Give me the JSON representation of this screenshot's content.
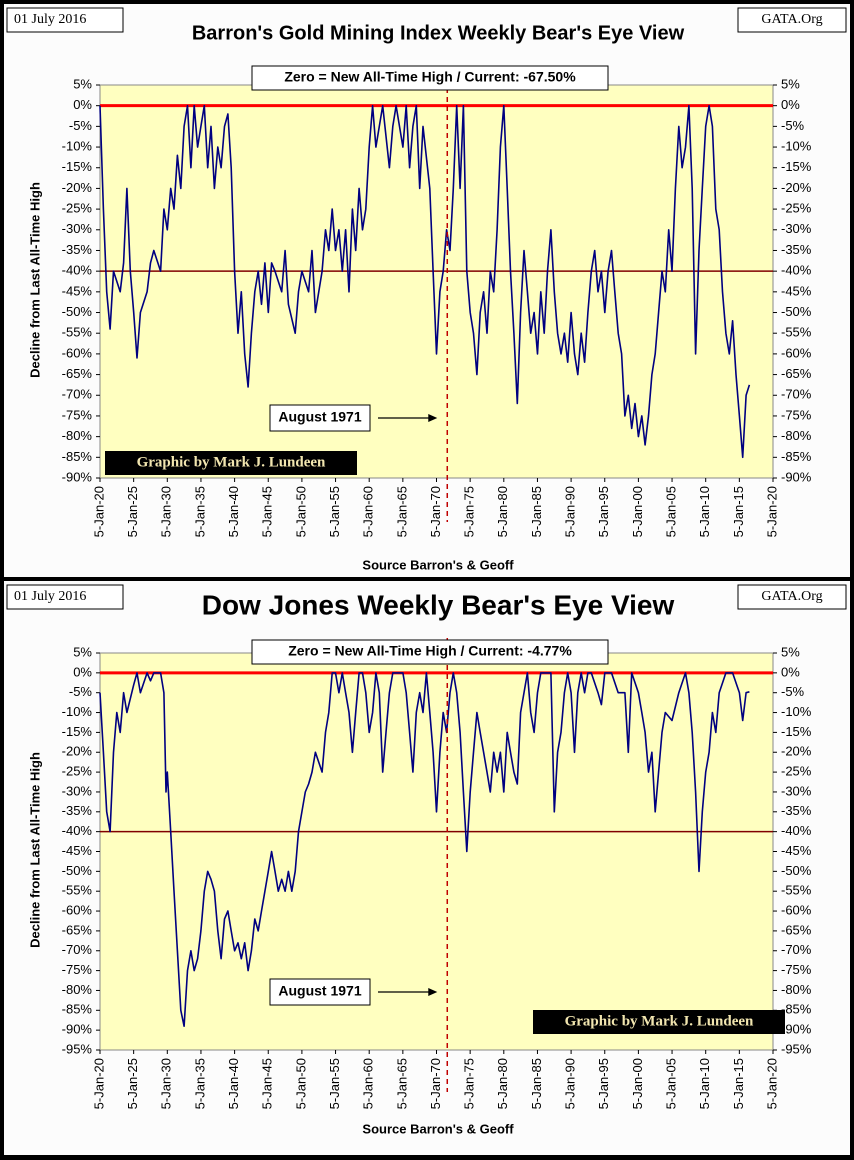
{
  "chart_data": [
    {
      "type": "line",
      "title": "Barron's Gold Mining Index Weekly Bear's Eye View",
      "date": "01 July 2016",
      "site": "GATA.Org",
      "note": "Zero = New All-Time High / Current: -67.50%",
      "event_label": "August 1971",
      "event_x": 1971.6,
      "credit": "Graphic by Mark J. Lundeen",
      "xlabel": "Source Barron's & Geoff",
      "ylabel": "Decline from Last All-Time High",
      "color": "#000080",
      "hlines": [
        {
          "value": 0,
          "color": "#ff0000"
        },
        {
          "value": -40,
          "color": "#800000"
        }
      ],
      "xlim": [
        1920,
        2020
      ],
      "ylim": [
        -90,
        5
      ],
      "xticks": [
        {
          "value": 1920,
          "label": "5-Jan-20"
        },
        {
          "value": 1925,
          "label": "5-Jan-25"
        },
        {
          "value": 1930,
          "label": "5-Jan-30"
        },
        {
          "value": 1935,
          "label": "5-Jan-35"
        },
        {
          "value": 1940,
          "label": "5-Jan-40"
        },
        {
          "value": 1945,
          "label": "5-Jan-45"
        },
        {
          "value": 1950,
          "label": "5-Jan-50"
        },
        {
          "value": 1955,
          "label": "5-Jan-55"
        },
        {
          "value": 1960,
          "label": "5-Jan-60"
        },
        {
          "value": 1965,
          "label": "5-Jan-65"
        },
        {
          "value": 1970,
          "label": "5-Jan-70"
        },
        {
          "value": 1975,
          "label": "5-Jan-75"
        },
        {
          "value": 1980,
          "label": "5-Jan-80"
        },
        {
          "value": 1985,
          "label": "5-Jan-85"
        },
        {
          "value": 1990,
          "label": "5-Jan-90"
        },
        {
          "value": 1995,
          "label": "5-Jan-95"
        },
        {
          "value": 2000,
          "label": "5-Jan-00"
        },
        {
          "value": 2005,
          "label": "5-Jan-05"
        },
        {
          "value": 2010,
          "label": "5-Jan-10"
        },
        {
          "value": 2015,
          "label": "5-Jan-15"
        },
        {
          "value": 2020,
          "label": "5-Jan-20"
        }
      ],
      "yticks": [
        {
          "value": 5,
          "label": "5%"
        },
        {
          "value": 0,
          "label": "0%"
        },
        {
          "value": -5,
          "label": "-5%"
        },
        {
          "value": -10,
          "label": "-10%"
        },
        {
          "value": -15,
          "label": "-15%"
        },
        {
          "value": -20,
          "label": "-20%"
        },
        {
          "value": -25,
          "label": "-25%"
        },
        {
          "value": -30,
          "label": "-30%"
        },
        {
          "value": -35,
          "label": "-35%"
        },
        {
          "value": -40,
          "label": "-40%"
        },
        {
          "value": -45,
          "label": "-45%"
        },
        {
          "value": -50,
          "label": "-50%"
        },
        {
          "value": -55,
          "label": "-55%"
        },
        {
          "value": -60,
          "label": "-60%"
        },
        {
          "value": -65,
          "label": "-65%"
        },
        {
          "value": -70,
          "label": "-70%"
        },
        {
          "value": -75,
          "label": "-75%"
        },
        {
          "value": -80,
          "label": "-80%"
        },
        {
          "value": -85,
          "label": "-85%"
        },
        {
          "value": -90,
          "label": "-90%"
        }
      ],
      "x": [
        1920,
        1920.5,
        1921,
        1921.5,
        1922,
        1923,
        1923.5,
        1924,
        1924.5,
        1925,
        1925.5,
        1926,
        1927,
        1927.5,
        1928,
        1929,
        1929.5,
        1930,
        1930.5,
        1931,
        1931.5,
        1932,
        1932.5,
        1933,
        1933.5,
        1934,
        1934.5,
        1935,
        1935.5,
        1936,
        1936.5,
        1937,
        1937.5,
        1938,
        1938.5,
        1939,
        1939.5,
        1940,
        1940.5,
        1941,
        1941.5,
        1942,
        1942.5,
        1943,
        1943.5,
        1944,
        1944.5,
        1945,
        1945.5,
        1946,
        1947,
        1947.5,
        1948,
        1949,
        1949.5,
        1950,
        1951,
        1951.5,
        1952,
        1953,
        1953.5,
        1954,
        1954.5,
        1955,
        1955.5,
        1956,
        1956.5,
        1957,
        1957.5,
        1958,
        1958.5,
        1959,
        1959.5,
        1960,
        1960.5,
        1961,
        1961.5,
        1962,
        1963,
        1963.5,
        1964,
        1965,
        1965.5,
        1966,
        1966.5,
        1967,
        1967.5,
        1968,
        1969,
        1969.5,
        1970,
        1970.5,
        1971,
        1971.5,
        1972,
        1972.5,
        1973,
        1973.5,
        1974,
        1974.5,
        1975,
        1975.5,
        1976,
        1976.5,
        1977,
        1977.5,
        1978,
        1978.5,
        1979,
        1979.5,
        1980,
        1980.5,
        1981,
        1981.5,
        1982,
        1982.5,
        1983,
        1983.5,
        1984,
        1984.5,
        1985,
        1985.5,
        1986,
        1986.5,
        1987,
        1987.5,
        1988,
        1988.5,
        1989,
        1989.5,
        1990,
        1990.5,
        1991,
        1991.5,
        1992,
        1992.5,
        1993,
        1993.5,
        1994,
        1994.5,
        1995,
        1995.5,
        1996,
        1996.5,
        1997,
        1997.5,
        1998,
        1998.5,
        1999,
        1999.5,
        2000,
        2000.5,
        2001,
        2001.5,
        2002,
        2002.5,
        2003,
        2003.5,
        2004,
        2004.5,
        2005,
        2005.5,
        2006,
        2006.5,
        2007,
        2007.5,
        2008,
        2008.5,
        2009,
        2009.5,
        2010,
        2010.5,
        2011,
        2011.5,
        2012,
        2012.5,
        2013,
        2013.5,
        2014,
        2014.5,
        2015,
        2015.5,
        2016,
        2016.5
      ],
      "values": [
        0,
        -25,
        -45,
        -54,
        -40,
        -45,
        -38,
        -20,
        -40,
        -50,
        -61,
        -50,
        -45,
        -38,
        -35,
        -40,
        -25,
        -30,
        -20,
        -25,
        -12,
        -20,
        -5,
        0,
        -15,
        0,
        -10,
        -5,
        0,
        -15,
        -5,
        -20,
        -10,
        -15,
        -5,
        -2,
        -15,
        -40,
        -55,
        -45,
        -60,
        -68,
        -55,
        -45,
        -40,
        -48,
        -38,
        -50,
        -38,
        -40,
        -45,
        -35,
        -48,
        -55,
        -45,
        -40,
        -45,
        -35,
        -50,
        -40,
        -30,
        -35,
        -25,
        -35,
        -30,
        -40,
        -30,
        -45,
        -25,
        -35,
        -20,
        -30,
        -25,
        -10,
        0,
        -10,
        -5,
        0,
        -15,
        -5,
        0,
        -10,
        0,
        -15,
        -5,
        0,
        -20,
        -5,
        -20,
        -40,
        -60,
        -45,
        -40,
        -30,
        -35,
        -20,
        0,
        -20,
        0,
        -40,
        -50,
        -55,
        -65,
        -50,
        -45,
        -55,
        -40,
        -45,
        -30,
        -10,
        0,
        -20,
        -40,
        -55,
        -72,
        -50,
        -35,
        -45,
        -55,
        -50,
        -60,
        -45,
        -55,
        -40,
        -30,
        -45,
        -55,
        -60,
        -55,
        -62,
        -50,
        -60,
        -65,
        -55,
        -62,
        -50,
        -40,
        -35,
        -45,
        -40,
        -50,
        -40,
        -35,
        -45,
        -55,
        -60,
        -75,
        -70,
        -78,
        -72,
        -80,
        -75,
        -82,
        -75,
        -65,
        -60,
        -50,
        -40,
        -45,
        -30,
        -40,
        -20,
        -5,
        -15,
        -10,
        0,
        -20,
        -60,
        -35,
        -20,
        -5,
        0,
        -5,
        -25,
        -30,
        -45,
        -55,
        -60,
        -52,
        -65,
        -75,
        -85,
        -70,
        -67.5
      ]
    },
    {
      "type": "line",
      "title": "Dow Jones Weekly Bear's Eye View",
      "date": "01 July 2016",
      "site": "GATA.Org",
      "note": "Zero = New All-Time High / Current: -4.77%",
      "event_label": "August 1971",
      "event_x": 1971.6,
      "credit": "Graphic by Mark J. Lundeen",
      "xlabel": "Source Barron's & Geoff",
      "ylabel": "Decline from Last All-Time High",
      "color": "#000080",
      "hlines": [
        {
          "value": 0,
          "color": "#ff0000"
        },
        {
          "value": -40,
          "color": "#800000"
        }
      ],
      "xlim": [
        1920,
        2020
      ],
      "ylim": [
        -95,
        5
      ],
      "xticks": [
        {
          "value": 1920,
          "label": "5-Jan-20"
        },
        {
          "value": 1925,
          "label": "5-Jan-25"
        },
        {
          "value": 1930,
          "label": "5-Jan-30"
        },
        {
          "value": 1935,
          "label": "5-Jan-35"
        },
        {
          "value": 1940,
          "label": "5-Jan-40"
        },
        {
          "value": 1945,
          "label": "5-Jan-45"
        },
        {
          "value": 1950,
          "label": "5-Jan-50"
        },
        {
          "value": 1955,
          "label": "5-Jan-55"
        },
        {
          "value": 1960,
          "label": "5-Jan-60"
        },
        {
          "value": 1965,
          "label": "5-Jan-65"
        },
        {
          "value": 1970,
          "label": "5-Jan-70"
        },
        {
          "value": 1975,
          "label": "5-Jan-75"
        },
        {
          "value": 1980,
          "label": "5-Jan-80"
        },
        {
          "value": 1985,
          "label": "5-Jan-85"
        },
        {
          "value": 1990,
          "label": "5-Jan-90"
        },
        {
          "value": 1995,
          "label": "5-Jan-95"
        },
        {
          "value": 2000,
          "label": "5-Jan-00"
        },
        {
          "value": 2005,
          "label": "5-Jan-05"
        },
        {
          "value": 2010,
          "label": "5-Jan-10"
        },
        {
          "value": 2015,
          "label": "5-Jan-15"
        },
        {
          "value": 2020,
          "label": "5-Jan-20"
        }
      ],
      "yticks": [
        {
          "value": 5,
          "label": "5%"
        },
        {
          "value": 0,
          "label": "0%"
        },
        {
          "value": -5,
          "label": "-5%"
        },
        {
          "value": -10,
          "label": "-10%"
        },
        {
          "value": -15,
          "label": "-15%"
        },
        {
          "value": -20,
          "label": "-20%"
        },
        {
          "value": -25,
          "label": "-25%"
        },
        {
          "value": -30,
          "label": "-30%"
        },
        {
          "value": -35,
          "label": "-35%"
        },
        {
          "value": -40,
          "label": "-40%"
        },
        {
          "value": -45,
          "label": "-45%"
        },
        {
          "value": -50,
          "label": "-50%"
        },
        {
          "value": -55,
          "label": "-55%"
        },
        {
          "value": -60,
          "label": "-60%"
        },
        {
          "value": -65,
          "label": "-65%"
        },
        {
          "value": -70,
          "label": "-70%"
        },
        {
          "value": -75,
          "label": "-75%"
        },
        {
          "value": -80,
          "label": "-80%"
        },
        {
          "value": -85,
          "label": "-85%"
        },
        {
          "value": -90,
          "label": "-90%"
        },
        {
          "value": -95,
          "label": "-95%"
        }
      ],
      "x": [
        1920,
        1920.5,
        1921,
        1921.5,
        1922,
        1922.5,
        1923,
        1923.5,
        1924,
        1925,
        1925.5,
        1926,
        1927,
        1927.5,
        1928,
        1929,
        1929.5,
        1929.8,
        1930,
        1930.5,
        1931,
        1931.5,
        1932,
        1932.5,
        1933,
        1933.5,
        1934,
        1934.5,
        1935,
        1935.5,
        1936,
        1936.5,
        1937,
        1937.5,
        1938,
        1938.5,
        1939,
        1939.5,
        1940,
        1940.5,
        1941,
        1941.5,
        1942,
        1942.5,
        1943,
        1943.5,
        1944,
        1944.5,
        1945,
        1945.5,
        1946,
        1946.5,
        1947,
        1947.5,
        1948,
        1948.5,
        1949,
        1949.5,
        1950,
        1950.5,
        1951,
        1951.5,
        1952,
        1953,
        1953.5,
        1954,
        1954.5,
        1955,
        1955.5,
        1956,
        1956.5,
        1957,
        1957.5,
        1958,
        1958.5,
        1959,
        1959.5,
        1960,
        1960.5,
        1961,
        1961.5,
        1962,
        1962.5,
        1963,
        1963.5,
        1964,
        1965,
        1965.5,
        1966,
        1966.5,
        1967,
        1967.5,
        1968,
        1968.5,
        1969,
        1969.5,
        1970,
        1970.5,
        1971,
        1971.5,
        1972,
        1972.5,
        1973,
        1973.5,
        1974,
        1974.5,
        1975,
        1975.5,
        1976,
        1976.5,
        1977,
        1977.5,
        1978,
        1978.5,
        1979,
        1979.5,
        1980,
        1980.5,
        1981,
        1981.5,
        1982,
        1982.5,
        1983,
        1983.5,
        1984,
        1984.5,
        1985,
        1985.5,
        1986,
        1987,
        1987.5,
        1988,
        1988.5,
        1989,
        1989.5,
        1990,
        1990.5,
        1991,
        1991.5,
        1992,
        1992.5,
        1993,
        1994,
        1994.5,
        1995,
        1996,
        1997,
        1998,
        1998.5,
        1999,
        2000,
        2000.5,
        2001,
        2001.5,
        2002,
        2002.5,
        2003,
        2003.5,
        2004,
        2005,
        2006,
        2007,
        2007.5,
        2008,
        2008.5,
        2009,
        2009.5,
        2010,
        2010.5,
        2011,
        2011.5,
        2012,
        2013,
        2014,
        2015,
        2015.5,
        2016,
        2016.5
      ],
      "values": [
        -5,
        -20,
        -35,
        -40,
        -20,
        -10,
        -15,
        -5,
        -10,
        -3,
        0,
        -5,
        0,
        -2,
        0,
        0,
        -5,
        -30,
        -25,
        -40,
        -55,
        -70,
        -85,
        -89,
        -75,
        -70,
        -75,
        -72,
        -65,
        -55,
        -50,
        -52,
        -55,
        -65,
        -72,
        -62,
        -60,
        -65,
        -70,
        -68,
        -72,
        -68,
        -75,
        -70,
        -62,
        -65,
        -60,
        -55,
        -50,
        -45,
        -50,
        -55,
        -52,
        -55,
        -50,
        -55,
        -50,
        -40,
        -35,
        -30,
        -28,
        -25,
        -20,
        -25,
        -15,
        -10,
        0,
        0,
        -5,
        0,
        -5,
        -10,
        -20,
        -10,
        0,
        0,
        -5,
        -15,
        -10,
        0,
        -5,
        -25,
        -15,
        -5,
        0,
        0,
        0,
        -5,
        -15,
        -25,
        -10,
        -5,
        -10,
        0,
        -10,
        -20,
        -35,
        -20,
        -10,
        -15,
        -5,
        0,
        -5,
        -15,
        -30,
        -45,
        -30,
        -20,
        -10,
        -15,
        -20,
        -25,
        -30,
        -20,
        -25,
        -20,
        -30,
        -15,
        -20,
        -25,
        -28,
        -10,
        -5,
        0,
        -10,
        -15,
        -5,
        0,
        0,
        0,
        -35,
        -20,
        -15,
        -5,
        0,
        -5,
        -20,
        -5,
        0,
        -5,
        0,
        0,
        -5,
        -8,
        0,
        0,
        -5,
        -5,
        -20,
        0,
        -5,
        -10,
        -15,
        -25,
        -20,
        -35,
        -25,
        -15,
        -10,
        -12,
        -5,
        0,
        -5,
        -15,
        -30,
        -50,
        -35,
        -25,
        -20,
        -10,
        -15,
        -5,
        0,
        0,
        -5,
        -12,
        -5,
        -4.77
      ]
    }
  ]
}
